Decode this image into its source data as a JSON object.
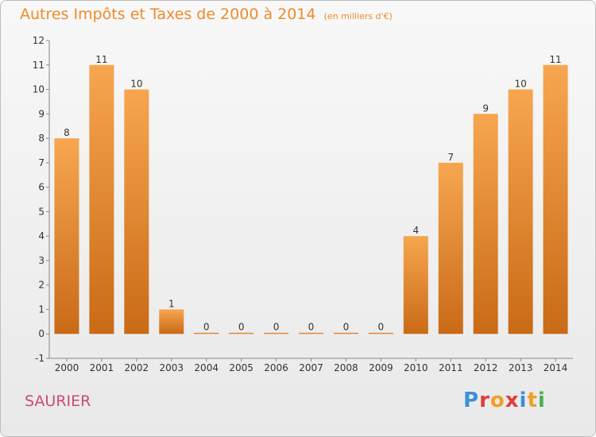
{
  "title": "Autres Impôts et Taxes de 2000 à 2014",
  "subtitle": "(en milliers d'€)",
  "commune": "SAURIER",
  "logo": {
    "text": "Proxiti",
    "letters": [
      {
        "ch": "P",
        "color": "#3c8fd8"
      },
      {
        "ch": "r",
        "color": "#e23b3b"
      },
      {
        "ch": "o",
        "color": "#f0a020"
      },
      {
        "ch": "x",
        "color": "#e23b3b"
      },
      {
        "ch": "i",
        "color": "#3c8fd8"
      },
      {
        "ch": "t",
        "color": "#f0a020"
      },
      {
        "ch": "i",
        "color": "#4caf50"
      }
    ]
  },
  "colors": {
    "bar_light": "#f7a650",
    "bar_dark": "#c96a16",
    "title": "#f08a2a",
    "commune": "#c94a78",
    "axis": "#888888"
  },
  "chart_data": {
    "type": "bar",
    "categories": [
      "2000",
      "2001",
      "2002",
      "2003",
      "2004",
      "2005",
      "2006",
      "2007",
      "2008",
      "2009",
      "2010",
      "2011",
      "2012",
      "2013",
      "2014"
    ],
    "values": [
      8,
      11,
      10,
      1,
      0,
      0,
      0,
      0,
      0,
      0,
      4,
      7,
      9,
      10,
      11
    ],
    "ylim": [
      -1,
      12
    ],
    "yticks": [
      -1,
      0,
      1,
      2,
      3,
      4,
      5,
      6,
      7,
      8,
      9,
      10,
      11,
      12
    ],
    "grid": false,
    "xlabel": "",
    "ylabel": ""
  }
}
